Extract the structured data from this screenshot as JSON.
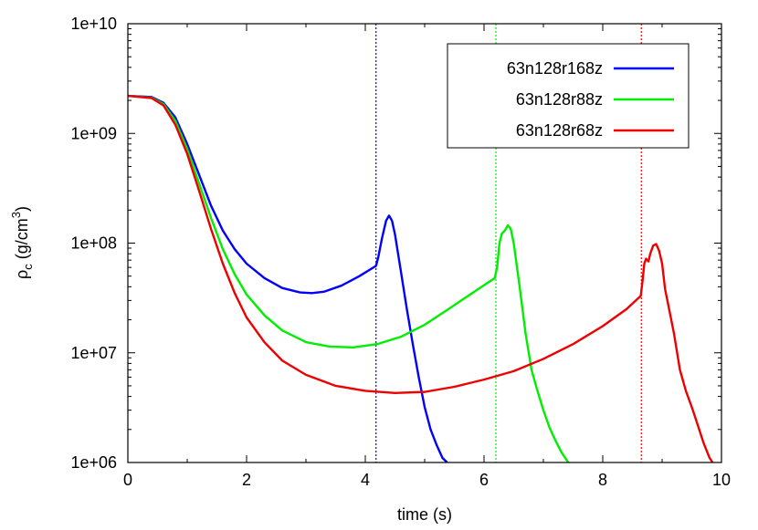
{
  "chart_data": {
    "type": "line",
    "xlabel": "time (s)",
    "ylabel": {
      "main": "ρ",
      "sub": "c",
      "unit_open": " (g/cm",
      "sup": "3",
      "unit_close": ")"
    },
    "xlim": [
      0,
      10
    ],
    "ylim": [
      1000000,
      10000000000
    ],
    "yscale": "log",
    "grid": false,
    "legend_position": "top-right",
    "x_ticks": [
      {
        "value": 0,
        "label": "0"
      },
      {
        "value": 2,
        "label": "2"
      },
      {
        "value": 4,
        "label": "4"
      },
      {
        "value": 6,
        "label": "6"
      },
      {
        "value": 8,
        "label": "8"
      },
      {
        "value": 10,
        "label": "10"
      }
    ],
    "y_ticks": [
      {
        "value": 1000000,
        "label": "1e+06"
      },
      {
        "value": 10000000,
        "label": "1e+07"
      },
      {
        "value": 100000000,
        "label": "1e+08"
      },
      {
        "value": 1000000000,
        "label": "1e+09"
      },
      {
        "value": 10000000000,
        "label": "1e+10"
      }
    ],
    "series": [
      {
        "name": "63n128r168z",
        "color": "#0000ff",
        "bounce_time": 4.18,
        "points": [
          [
            0,
            2200000000.0
          ],
          [
            0.4,
            2150000000.0
          ],
          [
            0.6,
            1900000000.0
          ],
          [
            0.8,
            1400000000.0
          ],
          [
            1.0,
            800000000.0
          ],
          [
            1.2,
            420000000.0
          ],
          [
            1.4,
            220000000.0
          ],
          [
            1.6,
            130000000.0
          ],
          [
            1.8,
            88000000.0
          ],
          [
            2.0,
            65000000.0
          ],
          [
            2.3,
            48000000.0
          ],
          [
            2.6,
            39000000.0
          ],
          [
            2.9,
            35500000.0
          ],
          [
            3.1,
            35000000.0
          ],
          [
            3.3,
            36000000.0
          ],
          [
            3.6,
            41000000.0
          ],
          [
            3.9,
            50000000.0
          ],
          [
            4.18,
            62000000.0
          ],
          [
            4.22,
            75000000.0
          ],
          [
            4.28,
            110000000.0
          ],
          [
            4.35,
            160000000.0
          ],
          [
            4.4,
            178000000.0
          ],
          [
            4.45,
            160000000.0
          ],
          [
            4.5,
            120000000.0
          ],
          [
            4.6,
            55000000.0
          ],
          [
            4.7,
            25000000.0
          ],
          [
            4.8,
            12000000.0
          ],
          [
            4.9,
            6000000.0
          ],
          [
            5.0,
            3200000.0
          ],
          [
            5.1,
            2000000.0
          ],
          [
            5.2,
            1450000.0
          ],
          [
            5.3,
            1100000.0
          ],
          [
            5.38,
            1000000.0
          ]
        ]
      },
      {
        "name": "63n128r88z",
        "color": "#00ee00",
        "bounce_time": 6.2,
        "points": [
          [
            0,
            2200000000.0
          ],
          [
            0.4,
            2120000000.0
          ],
          [
            0.6,
            1850000000.0
          ],
          [
            0.8,
            1300000000.0
          ],
          [
            1.0,
            720000000.0
          ],
          [
            1.2,
            350000000.0
          ],
          [
            1.4,
            170000000.0
          ],
          [
            1.6,
            88000000.0
          ],
          [
            1.8,
            52000000.0
          ],
          [
            2.0,
            34000000.0
          ],
          [
            2.3,
            22000000.0
          ],
          [
            2.6,
            16000000.0
          ],
          [
            3.0,
            12500000.0
          ],
          [
            3.4,
            11400000.0
          ],
          [
            3.8,
            11200000.0
          ],
          [
            4.2,
            12000000.0
          ],
          [
            4.6,
            14000000.0
          ],
          [
            5.0,
            18000000.0
          ],
          [
            5.4,
            25000000.0
          ],
          [
            5.8,
            35000000.0
          ],
          [
            6.18,
            48000000.0
          ],
          [
            6.22,
            60000000.0
          ],
          [
            6.26,
            100000000.0
          ],
          [
            6.3,
            122000000.0
          ],
          [
            6.35,
            130000000.0
          ],
          [
            6.4,
            145000000.0
          ],
          [
            6.45,
            135000000.0
          ],
          [
            6.5,
            100000000.0
          ],
          [
            6.6,
            40000000.0
          ],
          [
            6.7,
            15000000.0
          ],
          [
            6.8,
            7000000.0
          ],
          [
            6.9,
            4500000.0
          ],
          [
            7.0,
            3000000.0
          ],
          [
            7.1,
            2100000.0
          ],
          [
            7.2,
            1600000.0
          ],
          [
            7.3,
            1250000.0
          ],
          [
            7.42,
            1000000.0
          ]
        ]
      },
      {
        "name": "63n128r68z",
        "color": "#ee0000",
        "bounce_time": 8.65,
        "points": [
          [
            0,
            2200000000.0
          ],
          [
            0.4,
            2100000000.0
          ],
          [
            0.6,
            1800000000.0
          ],
          [
            0.8,
            1200000000.0
          ],
          [
            1.0,
            650000000.0
          ],
          [
            1.2,
            300000000.0
          ],
          [
            1.4,
            135000000.0
          ],
          [
            1.6,
            65000000.0
          ],
          [
            1.8,
            35000000.0
          ],
          [
            2.0,
            21000000.0
          ],
          [
            2.3,
            12500000.0
          ],
          [
            2.6,
            8500000.0
          ],
          [
            3.0,
            6300000.0
          ],
          [
            3.5,
            5000000.0
          ],
          [
            4.0,
            4500000.0
          ],
          [
            4.5,
            4300000.0
          ],
          [
            5.0,
            4400000.0
          ],
          [
            5.5,
            4900000.0
          ],
          [
            6.0,
            5700000.0
          ],
          [
            6.5,
            6800000.0
          ],
          [
            7.0,
            8800000.0
          ],
          [
            7.5,
            12000000.0
          ],
          [
            8.0,
            17500000.0
          ],
          [
            8.4,
            25000000.0
          ],
          [
            8.64,
            33000000.0
          ],
          [
            8.67,
            45000000.0
          ],
          [
            8.7,
            65000000.0
          ],
          [
            8.73,
            72000000.0
          ],
          [
            8.77,
            68000000.0
          ],
          [
            8.8,
            80000000.0
          ],
          [
            8.85,
            95000000.0
          ],
          [
            8.9,
            98000000.0
          ],
          [
            8.95,
            85000000.0
          ],
          [
            9.0,
            65000000.0
          ],
          [
            9.05,
            38000000.0
          ],
          [
            9.1,
            28000000.0
          ],
          [
            9.2,
            15000000.0
          ],
          [
            9.3,
            7000000.0
          ],
          [
            9.4,
            4500000.0
          ],
          [
            9.5,
            3200000.0
          ],
          [
            9.6,
            2200000.0
          ],
          [
            9.7,
            1500000.0
          ],
          [
            9.8,
            1100000.0
          ],
          [
            9.85,
            1000000.0
          ]
        ]
      }
    ]
  }
}
